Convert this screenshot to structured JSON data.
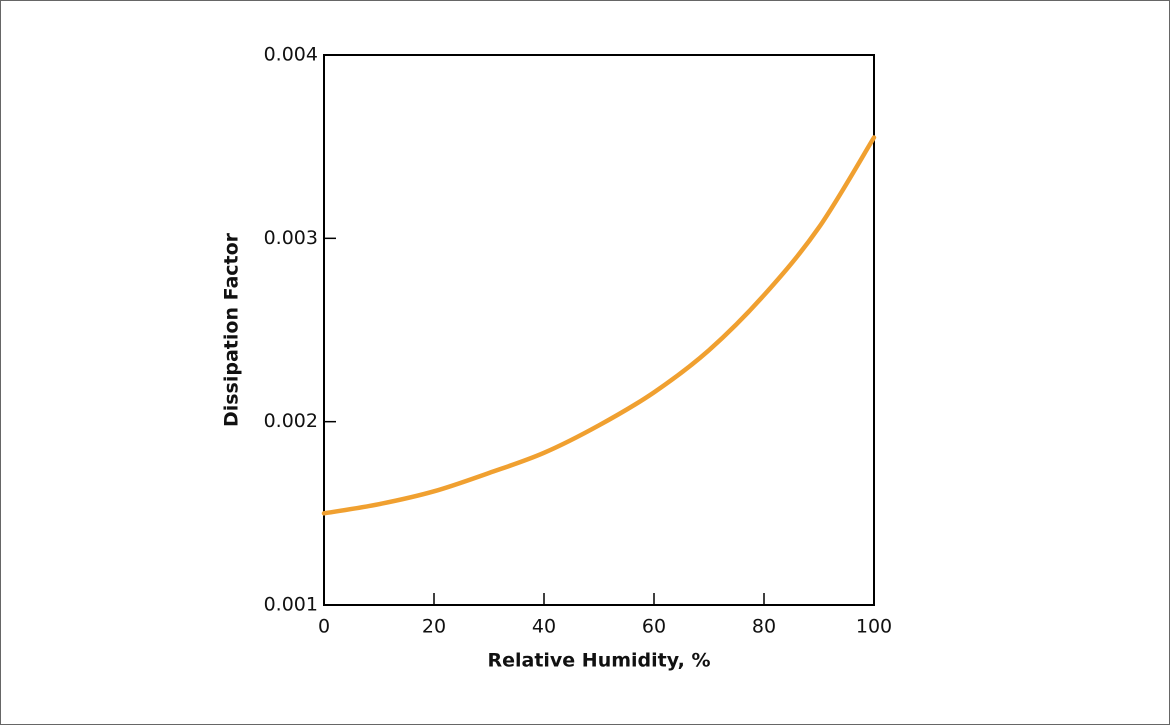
{
  "chart_data": {
    "type": "line",
    "x_label": "Relative Humidity, %",
    "y_label": "Dissipation Factor",
    "x": [
      0,
      10,
      20,
      30,
      40,
      50,
      60,
      70,
      80,
      90,
      100
    ],
    "series": [
      {
        "name": "Dissipation Factor",
        "color": "#f0a030",
        "values": [
          0.0015,
          0.00155,
          0.00162,
          0.00172,
          0.00183,
          0.00198,
          0.00216,
          0.00239,
          0.00269,
          0.00306,
          0.00355
        ]
      }
    ],
    "xlim": [
      0,
      100
    ],
    "xticks": [
      0,
      20,
      40,
      60,
      80,
      100
    ],
    "ylim": [
      0.001,
      0.004
    ],
    "yticks": [
      0.001,
      0.002,
      0.003,
      0.004
    ],
    "grid": false
  }
}
